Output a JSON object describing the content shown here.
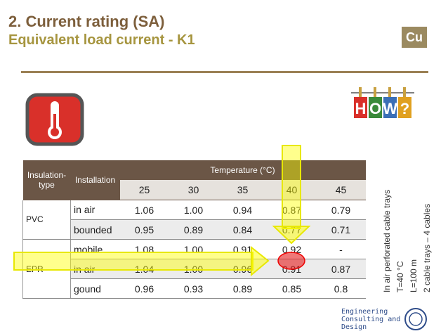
{
  "header": {
    "title": "2. Current rating (SA)",
    "subtitle": "Equivalent load current  - K1",
    "badge": "Cu",
    "how_letters": [
      "H",
      "O",
      "W",
      "?"
    ]
  },
  "table": {
    "insulation_header": [
      "Insulation-",
      "type"
    ],
    "installation_header": "Installation",
    "temperature_header": "Temperature (°C)",
    "temperatures": [
      "25",
      "30",
      "35",
      "40",
      "45"
    ],
    "groups": [
      {
        "insulation": "PVC",
        "rows": [
          {
            "installation": "in air",
            "values": [
              "1.06",
              "1.00",
              "0.94",
              "0.87",
              "0.79"
            ]
          },
          {
            "installation": "bounded",
            "values": [
              "0.95",
              "0.89",
              "0.84",
              "0.77",
              "0.71"
            ]
          }
        ]
      },
      {
        "insulation": "EPR",
        "rows": [
          {
            "installation": "mobile",
            "values": [
              "1.08",
              "1.00",
              "0.91",
              "0.92",
              "-"
            ]
          },
          {
            "installation": "in air",
            "values": [
              "1.04",
              "1.00",
              "0.96",
              "0.91",
              "0.87"
            ]
          },
          {
            "installation": "gound",
            "values": [
              "0.96",
              "0.93",
              "0.89",
              "0.85",
              "0.8"
            ]
          }
        ]
      }
    ]
  },
  "notes": [
    "In air perforated cable trays",
    "T=40 °C",
    "L=100 m",
    "2 cable trays – 4 cables"
  ],
  "logo": {
    "lines": [
      "Engineering",
      "Consulting and",
      "Design"
    ]
  }
}
